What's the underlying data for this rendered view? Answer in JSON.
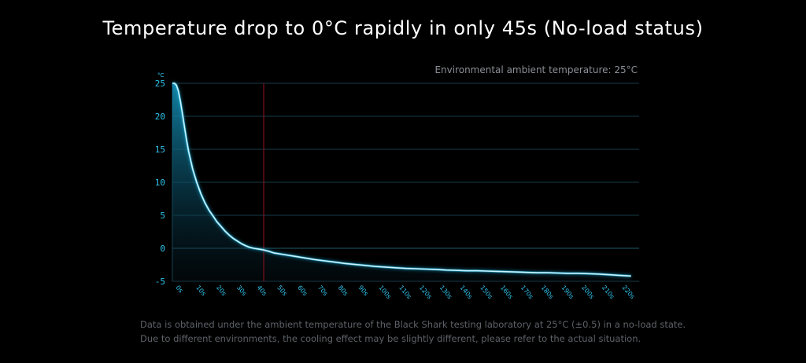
{
  "title": "Temperature drop to 0°C rapidly in only 45s (No-load status)",
  "ambient_note": "Environmental ambient temperature: 25°C",
  "footnotes": [
    "Data is obtained under the ambient temperature of the Black Shark testing laboratory at 25°C (±0.5) in a no-load state.",
    "Due to different environments, the cooling effect may be slightly different, please refer to the actual situation."
  ],
  "colors": {
    "background": "#000000",
    "line": "#c8f4ff",
    "glow": "#1fb8e8",
    "area_top": "#1390b8",
    "grid": "#163a48",
    "ticks": "#2fc6ee",
    "marker": "#9b1020"
  },
  "chart_data": {
    "type": "area",
    "title": "Temperature drop to 0°C rapidly in only 45s (No-load status)",
    "ylabel": "°C",
    "xlabel": "",
    "ylim": [
      -5,
      25
    ],
    "xlim": [
      0,
      226
    ],
    "grid": true,
    "y_ticks": [
      "25",
      "20",
      "15",
      "10",
      "5",
      "0",
      "-5"
    ],
    "y_tick_values": [
      25,
      20,
      15,
      10,
      5,
      0,
      -5
    ],
    "x_ticks": [
      "0s",
      "10s",
      "20s",
      "30s",
      "40s",
      "50s",
      "60s",
      "70s",
      "80s",
      "90s",
      "100s",
      "110s",
      "120s",
      "130s",
      "140s",
      "150s",
      "160s",
      "170s",
      "180s",
      "190s",
      "200s",
      "210s",
      "220s"
    ],
    "x_tick_values": [
      0,
      10,
      20,
      30,
      40,
      50,
      60,
      70,
      80,
      90,
      100,
      110,
      120,
      130,
      140,
      150,
      160,
      170,
      180,
      190,
      200,
      210,
      220
    ],
    "marker_x": 45,
    "series": [
      {
        "x": [
          0,
          1,
          2,
          3,
          4,
          5,
          6,
          7,
          8,
          10,
          12,
          14,
          16,
          18,
          20,
          22,
          24,
          26,
          28,
          30,
          32,
          34,
          36,
          38,
          40,
          42,
          44,
          45,
          48,
          50,
          55,
          60,
          65,
          70,
          75,
          80,
          85,
          90,
          95,
          100,
          105,
          110,
          115,
          120,
          125,
          130,
          135,
          140,
          145,
          150,
          155,
          160,
          165,
          170,
          175,
          180,
          185,
          190,
          195,
          200,
          205,
          210,
          215,
          220,
          226
        ],
        "y": [
          25,
          25,
          24.7,
          23.8,
          22.2,
          20.3,
          18.3,
          16.4,
          14.7,
          12.0,
          10.0,
          8.3,
          6.9,
          5.8,
          4.9,
          4.0,
          3.3,
          2.6,
          2.0,
          1.5,
          1.1,
          0.7,
          0.4,
          0.15,
          0.0,
          -0.1,
          -0.2,
          -0.25,
          -0.5,
          -0.7,
          -0.95,
          -1.2,
          -1.45,
          -1.7,
          -1.9,
          -2.1,
          -2.3,
          -2.45,
          -2.6,
          -2.75,
          -2.85,
          -2.95,
          -3.05,
          -3.1,
          -3.15,
          -3.2,
          -3.3,
          -3.35,
          -3.4,
          -3.4,
          -3.45,
          -3.5,
          -3.55,
          -3.6,
          -3.65,
          -3.7,
          -3.7,
          -3.75,
          -3.8,
          -3.8,
          -3.85,
          -3.9,
          -4.0,
          -4.1,
          -4.2
        ]
      }
    ]
  }
}
